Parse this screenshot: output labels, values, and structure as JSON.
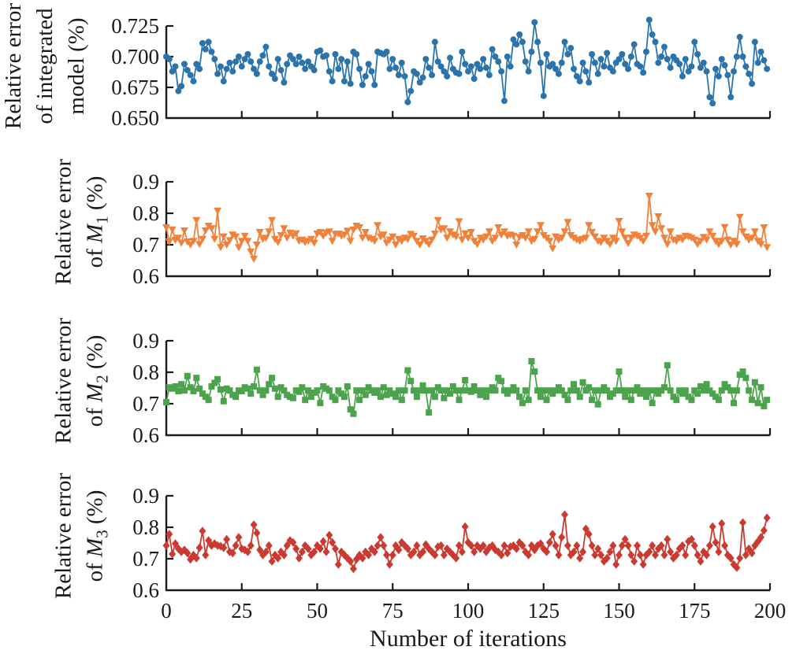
{
  "figure": {
    "background": "#ffffff",
    "text_color": "#1a1a1a"
  },
  "xaxis": {
    "label": "Number of iterations",
    "tick_labels": [
      "0",
      "25",
      "50",
      "75",
      "100",
      "125",
      "150",
      "175",
      "200"
    ],
    "tick_values": [
      0,
      25,
      50,
      75,
      100,
      125,
      150,
      175,
      200
    ],
    "xlim": [
      0,
      200
    ]
  },
  "chart_data": {
    "type": "line",
    "x_description": "iteration index 0-199, one point per iteration, shared x-axis",
    "panels": [
      {
        "name": "integrated-model",
        "marker": "circle",
        "color": "#2b74ab",
        "ylabel_lines": [
          {
            "text": "Relative error"
          },
          {
            "text": "of integrated"
          },
          {
            "text": "model (%)"
          }
        ],
        "ylim": [
          0.65,
          0.7375
        ],
        "ytick_values": [
          0.65,
          0.675,
          0.7,
          0.725
        ],
        "ytick_labels": [
          "0.650",
          "0.675",
          "0.700",
          "0.725"
        ],
        "values": [
          0.7,
          0.698,
          0.688,
          0.692,
          0.672,
          0.676,
          0.694,
          0.689,
          0.685,
          0.68,
          0.694,
          0.69,
          0.711,
          0.706,
          0.712,
          0.704,
          0.698,
          0.686,
          0.692,
          0.68,
          0.69,
          0.695,
          0.688,
          0.696,
          0.7,
          0.692,
          0.698,
          0.702,
          0.696,
          0.69,
          0.686,
          0.696,
          0.701,
          0.708,
          0.692,
          0.686,
          0.682,
          0.698,
          0.689,
          0.679,
          0.694,
          0.701,
          0.698,
          0.694,
          0.7,
          0.695,
          0.69,
          0.696,
          0.692,
          0.689,
          0.704,
          0.705,
          0.7,
          0.701,
          0.688,
          0.68,
          0.702,
          0.69,
          0.698,
          0.68,
          0.696,
          0.678,
          0.704,
          0.702,
          0.69,
          0.677,
          0.684,
          0.694,
          0.688,
          0.677,
          0.704,
          0.703,
          0.702,
          0.704,
          0.69,
          0.698,
          0.691,
          0.685,
          0.695,
          0.684,
          0.663,
          0.672,
          0.688,
          0.686,
          0.679,
          0.683,
          0.698,
          0.691,
          0.685,
          0.712,
          0.696,
          0.692,
          0.688,
          0.684,
          0.699,
          0.69,
          0.687,
          0.686,
          0.704,
          0.694,
          0.688,
          0.692,
          0.682,
          0.694,
          0.69,
          0.698,
          0.691,
          0.685,
          0.706,
          0.7,
          0.696,
          0.688,
          0.664,
          0.7,
          0.692,
          0.714,
          0.71,
          0.718,
          0.712,
          0.696,
          0.688,
          0.704,
          0.728,
          0.712,
          0.695,
          0.668,
          0.702,
          0.692,
          0.694,
          0.69,
          0.686,
          0.695,
          0.712,
          0.702,
          0.707,
          0.69,
          0.684,
          0.68,
          0.695,
          0.688,
          0.679,
          0.702,
          0.695,
          0.686,
          0.698,
          0.692,
          0.703,
          0.691,
          0.688,
          0.695,
          0.698,
          0.702,
          0.694,
          0.69,
          0.7,
          0.71,
          0.694,
          0.692,
          0.687,
          0.704,
          0.73,
          0.718,
          0.712,
          0.695,
          0.7,
          0.708,
          0.698,
          0.691,
          0.7,
          0.697,
          0.694,
          0.684,
          0.698,
          0.688,
          0.692,
          0.712,
          0.702,
          0.691,
          0.695,
          0.688,
          0.667,
          0.662,
          0.69,
          0.684,
          0.698,
          0.693,
          0.685,
          0.667,
          0.688,
          0.7,
          0.716,
          0.7,
          0.692,
          0.686,
          0.678,
          0.712,
          0.695,
          0.704,
          0.697,
          0.69
        ]
      },
      {
        "name": "M1",
        "marker": "triangle-down",
        "color": "#f0813a",
        "ylabel_lines": [
          {
            "text": "Relative error"
          },
          {
            "prefix": "of ",
            "var": "M",
            "sub": "1",
            "suffix": " (%)"
          }
        ],
        "ylim": [
          0.6,
          0.9575
        ],
        "ytick_values": [
          0.6,
          0.7,
          0.8,
          0.9
        ],
        "ytick_labels": [
          "0.6",
          "0.7",
          "0.8",
          "0.9"
        ],
        "values": [
          0.755,
          0.71,
          0.748,
          0.715,
          0.722,
          0.706,
          0.745,
          0.71,
          0.7,
          0.712,
          0.778,
          0.702,
          0.718,
          0.745,
          0.76,
          0.752,
          0.718,
          0.808,
          0.692,
          0.726,
          0.7,
          0.714,
          0.732,
          0.726,
          0.692,
          0.712,
          0.728,
          0.712,
          0.678,
          0.655,
          0.7,
          0.74,
          0.718,
          0.722,
          0.742,
          0.778,
          0.718,
          0.708,
          0.73,
          0.752,
          0.722,
          0.738,
          0.728,
          0.736,
          0.712,
          0.716,
          0.708,
          0.712,
          0.718,
          0.706,
          0.735,
          0.74,
          0.728,
          0.738,
          0.742,
          0.712,
          0.734,
          0.735,
          0.728,
          0.732,
          0.744,
          0.712,
          0.748,
          0.76,
          0.755,
          0.722,
          0.74,
          0.722,
          0.718,
          0.712,
          0.762,
          0.726,
          0.732,
          0.706,
          0.716,
          0.726,
          0.7,
          0.718,
          0.712,
          0.722,
          0.718,
          0.734,
          0.728,
          0.712,
          0.7,
          0.72,
          0.712,
          0.702,
          0.716,
          0.735,
          0.778,
          0.748,
          0.752,
          0.722,
          0.742,
          0.732,
          0.726,
          0.774,
          0.716,
          0.736,
          0.722,
          0.74,
          0.712,
          0.702,
          0.722,
          0.716,
          0.726,
          0.742,
          0.712,
          0.722,
          0.755,
          0.732,
          0.742,
          0.728,
          0.732,
          0.728,
          0.7,
          0.724,
          0.73,
          0.722,
          0.742,
          0.712,
          0.718,
          0.742,
          0.762,
          0.73,
          0.722,
          0.712,
          0.688,
          0.726,
          0.716,
          0.722,
          0.742,
          0.772,
          0.73,
          0.722,
          0.716,
          0.712,
          0.718,
          0.722,
          0.762,
          0.74,
          0.726,
          0.712,
          0.708,
          0.722,
          0.712,
          0.702,
          0.722,
          0.712,
          0.775,
          0.742,
          0.722,
          0.705,
          0.722,
          0.732,
          0.728,
          0.722,
          0.712,
          0.728,
          0.855,
          0.762,
          0.742,
          0.79,
          0.752,
          0.722,
          0.702,
          0.742,
          0.716,
          0.712,
          0.722,
          0.716,
          0.728,
          0.726,
          0.722,
          0.716,
          0.702,
          0.712,
          0.724,
          0.716,
          0.742,
          0.728,
          0.712,
          0.702,
          0.712,
          0.756,
          0.716,
          0.7,
          0.712,
          0.702,
          0.788,
          0.742,
          0.726,
          0.716,
          0.722,
          0.742,
          0.712,
          0.702,
          0.755,
          0.692
        ]
      },
      {
        "name": "M2",
        "marker": "square",
        "color": "#4ba44c",
        "ylabel_lines": [
          {
            "text": "Relative error"
          },
          {
            "prefix": "of ",
            "var": "M",
            "sub": "2",
            "suffix": " (%)"
          }
        ],
        "ylim": [
          0.6,
          0.9575
        ],
        "ytick_values": [
          0.6,
          0.7,
          0.8,
          0.9
        ],
        "ytick_labels": [
          "0.6",
          "0.7",
          "0.8",
          "0.9"
        ],
        "values": [
          0.705,
          0.752,
          0.748,
          0.755,
          0.74,
          0.762,
          0.742,
          0.788,
          0.752,
          0.74,
          0.782,
          0.748,
          0.732,
          0.722,
          0.712,
          0.755,
          0.766,
          0.778,
          0.745,
          0.708,
          0.748,
          0.742,
          0.728,
          0.722,
          0.742,
          0.74,
          0.752,
          0.748,
          0.732,
          0.755,
          0.808,
          0.742,
          0.728,
          0.742,
          0.762,
          0.782,
          0.748,
          0.722,
          0.752,
          0.742,
          0.728,
          0.722,
          0.718,
          0.742,
          0.738,
          0.752,
          0.712,
          0.742,
          0.722,
          0.735,
          0.742,
          0.702,
          0.755,
          0.748,
          0.742,
          0.722,
          0.712,
          0.742,
          0.732,
          0.722,
          0.755,
          0.682,
          0.668,
          0.742,
          0.712,
          0.742,
          0.728,
          0.752,
          0.742,
          0.735,
          0.742,
          0.722,
          0.752,
          0.728,
          0.742,
          0.732,
          0.722,
          0.742,
          0.712,
          0.742,
          0.806,
          0.772,
          0.742,
          0.722,
          0.742,
          0.758,
          0.742,
          0.672,
          0.742,
          0.722,
          0.752,
          0.742,
          0.718,
          0.742,
          0.732,
          0.755,
          0.742,
          0.712,
          0.742,
          0.775,
          0.742,
          0.738,
          0.755,
          0.742,
          0.728,
          0.742,
          0.722,
          0.742,
          0.752,
          0.742,
          0.782,
          0.772,
          0.742,
          0.732,
          0.742,
          0.752,
          0.742,
          0.722,
          0.702,
          0.742,
          0.712,
          0.835,
          0.802,
          0.742,
          0.722,
          0.742,
          0.712,
          0.742,
          0.732,
          0.742,
          0.752,
          0.742,
          0.728,
          0.712,
          0.742,
          0.762,
          0.742,
          0.722,
          0.768,
          0.742,
          0.752,
          0.712,
          0.742,
          0.698,
          0.742,
          0.752,
          0.742,
          0.722,
          0.732,
          0.742,
          0.802,
          0.742,
          0.722,
          0.742,
          0.712,
          0.742,
          0.752,
          0.732,
          0.742,
          0.722,
          0.742,
          0.702,
          0.742,
          0.732,
          0.742,
          0.752,
          0.822,
          0.742,
          0.722,
          0.712,
          0.742,
          0.732,
          0.742,
          0.722,
          0.712,
          0.742,
          0.732,
          0.755,
          0.742,
          0.762,
          0.742,
          0.732,
          0.722,
          0.712,
          0.742,
          0.762,
          0.752,
          0.742,
          0.702,
          0.742,
          0.792,
          0.802,
          0.782,
          0.742,
          0.712,
          0.768,
          0.702,
          0.752,
          0.692,
          0.712
        ]
      },
      {
        "name": "M3",
        "marker": "diamond",
        "color": "#cb3a31",
        "ylabel_lines": [
          {
            "text": "Relative error"
          },
          {
            "prefix": "of ",
            "var": "M",
            "sub": "3",
            "suffix": " (%)"
          }
        ],
        "ylim": [
          0.6,
          0.9575
        ],
        "ytick_values": [
          0.6,
          0.7,
          0.8,
          0.9
        ],
        "ytick_labels": [
          "0.6",
          "0.7",
          "0.8",
          "0.9"
        ],
        "values": [
          0.742,
          0.778,
          0.715,
          0.748,
          0.732,
          0.722,
          0.728,
          0.718,
          0.698,
          0.712,
          0.702,
          0.735,
          0.788,
          0.712,
          0.758,
          0.742,
          0.748,
          0.742,
          0.74,
          0.735,
          0.762,
          0.722,
          0.718,
          0.742,
          0.768,
          0.732,
          0.728,
          0.722,
          0.742,
          0.808,
          0.782,
          0.728,
          0.712,
          0.722,
          0.742,
          0.692,
          0.712,
          0.702,
          0.722,
          0.712,
          0.742,
          0.758,
          0.752,
          0.732,
          0.702,
          0.722,
          0.742,
          0.732,
          0.712,
          0.722,
          0.742,
          0.732,
          0.755,
          0.722,
          0.775,
          0.752,
          0.732,
          0.682,
          0.722,
          0.712,
          0.702,
          0.692,
          0.668,
          0.698,
          0.712,
          0.702,
          0.722,
          0.712,
          0.732,
          0.722,
          0.742,
          0.768,
          0.742,
          0.712,
          0.682,
          0.712,
          0.742,
          0.728,
          0.752,
          0.742,
          0.732,
          0.712,
          0.722,
          0.742,
          0.712,
          0.722,
          0.745,
          0.732,
          0.722,
          0.712,
          0.738,
          0.742,
          0.712,
          0.732,
          0.722,
          0.712,
          0.702,
          0.742,
          0.722,
          0.802,
          0.752,
          0.742,
          0.722,
          0.742,
          0.732,
          0.742,
          0.722,
          0.735,
          0.742,
          0.728,
          0.722,
          0.712,
          0.742,
          0.718,
          0.738,
          0.742,
          0.732,
          0.752,
          0.742,
          0.722,
          0.712,
          0.742,
          0.728,
          0.742,
          0.748,
          0.732,
          0.722,
          0.752,
          0.778,
          0.742,
          0.712,
          0.768,
          0.84,
          0.742,
          0.712,
          0.722,
          0.742,
          0.702,
          0.722,
          0.795,
          0.778,
          0.742,
          0.712,
          0.732,
          0.712,
          0.692,
          0.702,
          0.722,
          0.742,
          0.682,
          0.712,
          0.742,
          0.762,
          0.742,
          0.712,
          0.692,
          0.742,
          0.712,
          0.682,
          0.712,
          0.722,
          0.742,
          0.712,
          0.732,
          0.742,
          0.712,
          0.762,
          0.722,
          0.702,
          0.712,
          0.732,
          0.742,
          0.712,
          0.755,
          0.762,
          0.742,
          0.712,
          0.692,
          0.722,
          0.712,
          0.742,
          0.802,
          0.752,
          0.722,
          0.812,
          0.742,
          0.712,
          0.702,
          0.682,
          0.672,
          0.702,
          0.815,
          0.712,
          0.732,
          0.718,
          0.742,
          0.755,
          0.768,
          0.79,
          0.83
        ]
      }
    ]
  }
}
